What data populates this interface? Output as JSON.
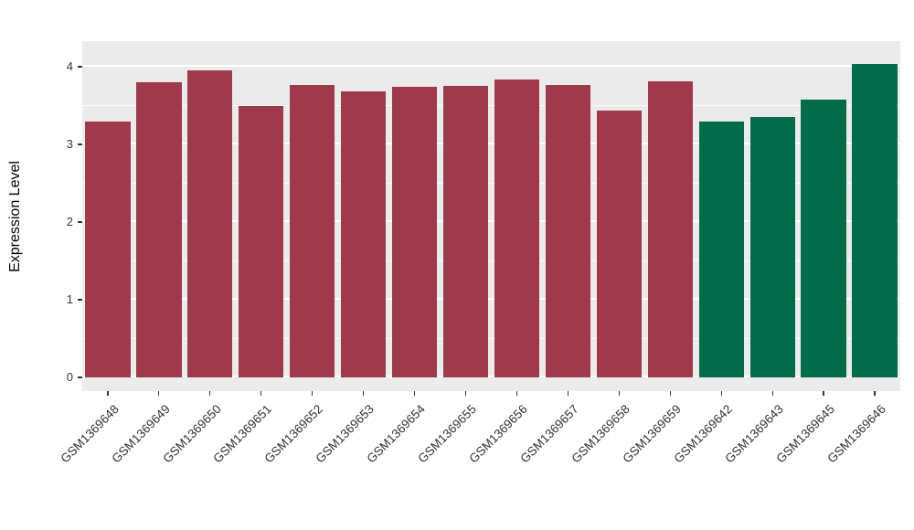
{
  "chart_data": {
    "type": "bar",
    "title": "",
    "xlabel": "",
    "ylabel": "Expression Level",
    "ylim": [
      0,
      4.3
    ],
    "yticks": [
      0,
      1,
      2,
      3,
      4
    ],
    "grid": "on",
    "legend": "none",
    "panel_bg": "#ebebeb",
    "grid_color": "#ffffff",
    "axis_text_color": "#333333",
    "colors": {
      "red_group": "#9e3a4c",
      "green_group": "#026c4a"
    },
    "categories": [
      "GSM1369648",
      "GSM1369649",
      "GSM1369650",
      "GSM1369651",
      "GSM1369652",
      "GSM1369653",
      "GSM1369654",
      "GSM1369655",
      "GSM1369656",
      "GSM1369657",
      "GSM1369658",
      "GSM1369659",
      "GSM1369642",
      "GSM1369643",
      "GSM1369645",
      "GSM1369646"
    ],
    "bars": [
      {
        "label": "GSM1369648",
        "value": 3.3,
        "color": "#9e3a4c"
      },
      {
        "label": "GSM1369649",
        "value": 3.8,
        "color": "#9e3a4c"
      },
      {
        "label": "GSM1369650",
        "value": 3.95,
        "color": "#9e3a4c"
      },
      {
        "label": "GSM1369651",
        "value": 3.5,
        "color": "#9e3a4c"
      },
      {
        "label": "GSM1369652",
        "value": 3.77,
        "color": "#9e3a4c"
      },
      {
        "label": "GSM1369653",
        "value": 3.68,
        "color": "#9e3a4c"
      },
      {
        "label": "GSM1369654",
        "value": 3.74,
        "color": "#9e3a4c"
      },
      {
        "label": "GSM1369655",
        "value": 3.75,
        "color": "#9e3a4c"
      },
      {
        "label": "GSM1369656",
        "value": 3.84,
        "color": "#9e3a4c"
      },
      {
        "label": "GSM1369657",
        "value": 3.77,
        "color": "#9e3a4c"
      },
      {
        "label": "GSM1369658",
        "value": 3.44,
        "color": "#9e3a4c"
      },
      {
        "label": "GSM1369659",
        "value": 3.81,
        "color": "#9e3a4c"
      },
      {
        "label": "GSM1369642",
        "value": 3.3,
        "color": "#026c4a"
      },
      {
        "label": "GSM1369643",
        "value": 3.35,
        "color": "#026c4a"
      },
      {
        "label": "GSM1369645",
        "value": 3.58,
        "color": "#026c4a"
      },
      {
        "label": "GSM1369646",
        "value": 4.04,
        "color": "#026c4a"
      }
    ]
  }
}
